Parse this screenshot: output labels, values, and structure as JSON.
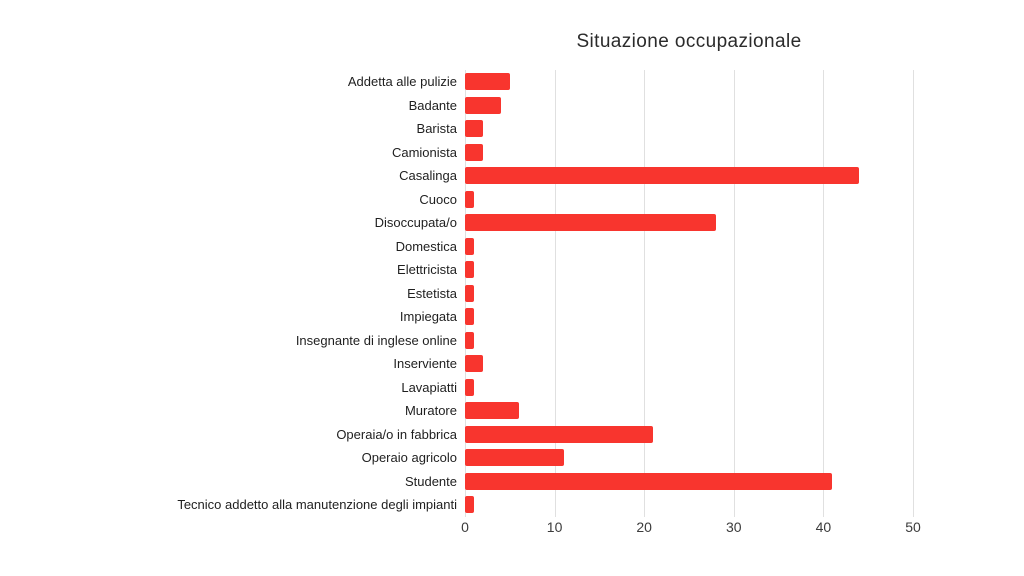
{
  "chart_data": {
    "type": "bar",
    "orientation": "horizontal",
    "title": "Situazione occupazionale",
    "categories": [
      "Addetta alle pulizie",
      "Badante",
      "Barista",
      "Camionista",
      "Casalinga",
      "Cuoco",
      "Disoccupata/o",
      "Domestica",
      "Elettricista",
      "Estetista",
      "Impiegata",
      "Insegnante di inglese online",
      "Inserviente",
      "Lavapiatti",
      "Muratore",
      "Operaia/o in fabbrica",
      "Operaio agricolo",
      "Studente",
      "Tecnico addetto alla manutenzione degli impianti"
    ],
    "values": [
      5,
      4,
      2,
      2,
      44,
      1,
      28,
      1,
      1,
      1,
      1,
      1,
      2,
      1,
      6,
      21,
      11,
      41,
      1
    ],
    "x_ticks": [
      0,
      10,
      20,
      30,
      40,
      50
    ],
    "xlim": [
      0,
      52
    ],
    "xlabel": "",
    "ylabel": "",
    "grid": true,
    "legend": false,
    "bar_color": "#f8352e",
    "gridline_color": "#e0e0e0",
    "title_color": "#2b2b2b",
    "label_color": "#1f1f1f",
    "tick_color": "#3c3c3c",
    "background": "#ffffff"
  }
}
